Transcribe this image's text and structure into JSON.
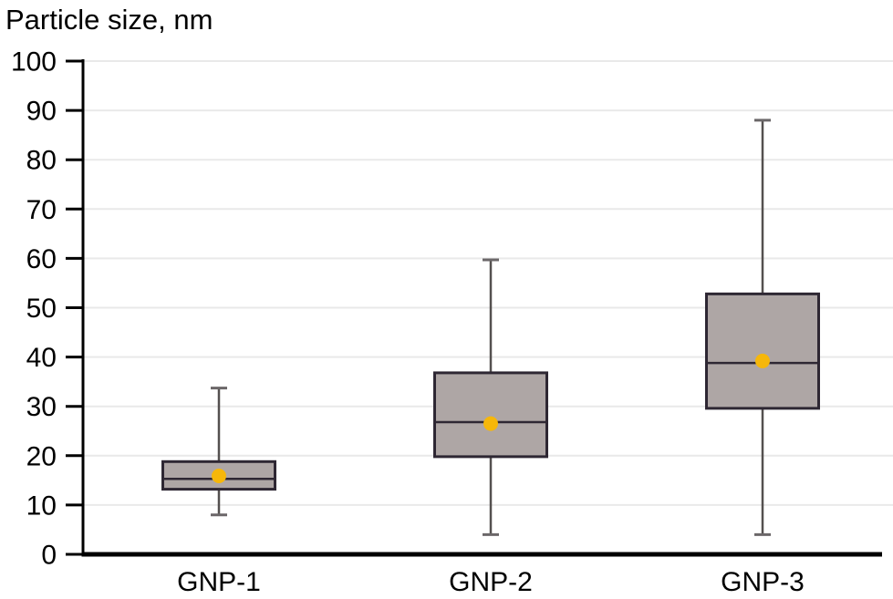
{
  "title": "Particle size, nm",
  "colors": {
    "background": "#ffffff",
    "box_fill": "#AEA6A5",
    "box_border": "#2E2733",
    "median_line": "#2E2733",
    "whisker": "#54504F",
    "whisker_cap": "#6B6769",
    "mean_dot": "#F6B70A",
    "gridline": "#E9E9E9",
    "axis": "#000000",
    "text": "#000000"
  },
  "chart_data": {
    "type": "boxplot",
    "title": "Particle size, nm",
    "ylabel": "Particle size, nm",
    "xlabel": "",
    "ylim": [
      0,
      100
    ],
    "ytick_step": 10,
    "yticks": [
      0,
      10,
      20,
      30,
      40,
      50,
      60,
      70,
      80,
      90,
      100
    ],
    "grid": true,
    "legend": "none",
    "categories": [
      "GNP-1",
      "GNP-2",
      "GNP-3"
    ],
    "series": [
      {
        "name": "GNP-1",
        "min": 8,
        "q1": 13.2,
        "median": 15.3,
        "q3": 18.8,
        "max": 33.7,
        "mean": 15.9
      },
      {
        "name": "GNP-2",
        "min": 4,
        "q1": 19.8,
        "median": 26.8,
        "q3": 36.8,
        "max": 59.7,
        "mean": 26.5
      },
      {
        "name": "GNP-3",
        "min": 4,
        "q1": 29.6,
        "median": 38.8,
        "q3": 52.8,
        "max": 88.0,
        "mean": 39.2
      }
    ]
  }
}
